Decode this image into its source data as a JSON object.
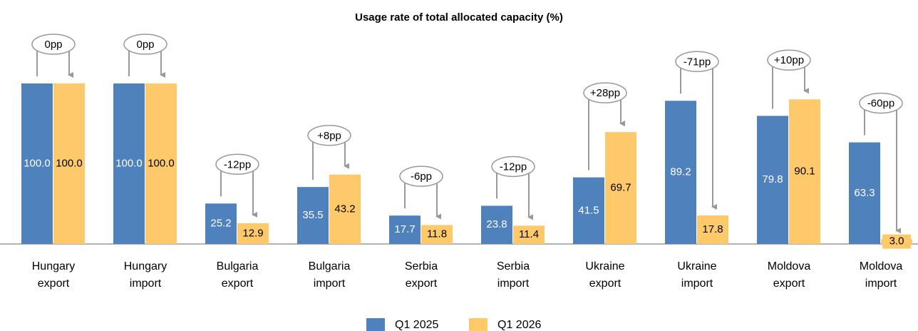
{
  "chart_data": {
    "type": "bar",
    "title": "Usage rate of total allocated capacity (%)",
    "categories": [
      "Hungary export",
      "Hungary import",
      "Bulgaria export",
      "Bulgaria import",
      "Serbia export",
      "Serbia import",
      "Ukraine export",
      "Ukraine import",
      "Moldova export",
      "Moldova import"
    ],
    "series": [
      {
        "name": "Q1 2025",
        "color": "#4f81bd",
        "values": [
          100.0,
          100.0,
          25.2,
          35.5,
          17.7,
          23.8,
          41.5,
          89.2,
          79.8,
          63.3
        ],
        "value_labels": [
          "100.0",
          "100.0",
          "25.2",
          "35.5",
          "17.7",
          "23.8",
          "41.5",
          "89.2",
          "79.8",
          "63.3"
        ]
      },
      {
        "name": "Q1 2026",
        "color": "#fdc96a",
        "values": [
          100.0,
          100.0,
          12.9,
          43.2,
          11.8,
          11.4,
          69.7,
          17.8,
          90.1,
          3.0
        ],
        "value_labels": [
          "100.0",
          "100.0",
          "12.9",
          "43.2",
          "11.8",
          "11.4",
          "69.7",
          "17.8",
          "90.1",
          "3.0"
        ]
      }
    ],
    "annotations": [
      "0pp",
      "0pp",
      "-12pp",
      "+8pp",
      "-6pp",
      "-12pp",
      "+28pp",
      "-71pp",
      "+10pp",
      "-60pp"
    ],
    "ylim": [
      0,
      100
    ]
  }
}
